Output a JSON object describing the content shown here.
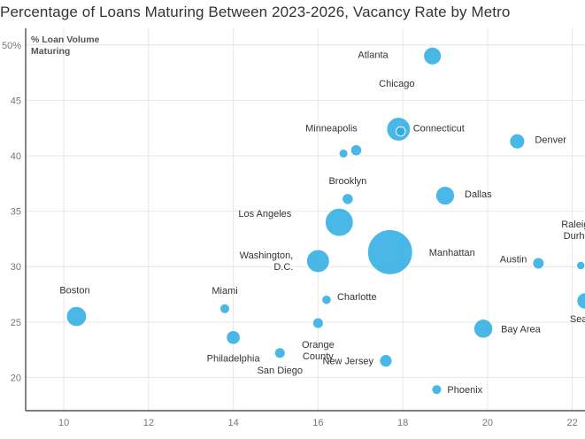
{
  "chart_data": {
    "type": "scatter",
    "title": "Percentage of Loans Maturing Between 2023-2026, Vacancy Rate by Metro",
    "ylabel_lines": [
      "% Loan Volume",
      "Maturing"
    ],
    "xlabel": "",
    "xlim": [
      9.1,
      22.3
    ],
    "ylim": [
      17,
      51.5
    ],
    "x_ticks": [
      10,
      12,
      14,
      16,
      18,
      20,
      22
    ],
    "y_ticks": [
      20,
      25,
      30,
      35,
      40,
      45,
      50
    ],
    "y_tick_labels": [
      "20",
      "25",
      "30",
      "35",
      "40",
      "45",
      "50%"
    ],
    "grid": true,
    "points": [
      {
        "name": "Atlanta",
        "label": [
          "Atlanta"
        ],
        "x": 18.7,
        "y": 49.0,
        "size": 3.6
      },
      {
        "name": "Chicago",
        "label": [
          "Chicago"
        ],
        "x": 17.9,
        "y": 42.4,
        "size": 6.4
      },
      {
        "name": "Connecticut",
        "label": [
          "Connecticut"
        ],
        "x": 17.95,
        "y": 42.2,
        "size": 1.0
      },
      {
        "name": "Minneapolis-a",
        "label": [],
        "x": 16.6,
        "y": 40.2,
        "size": 0.9
      },
      {
        "name": "Minneapolis",
        "label": [
          "Minneapolis"
        ],
        "x": 16.9,
        "y": 40.5,
        "size": 1.4
      },
      {
        "name": "Denver",
        "label": [
          "Denver"
        ],
        "x": 20.7,
        "y": 41.3,
        "size": 2.6
      },
      {
        "name": "Brooklyn",
        "label": [
          "Brooklyn"
        ],
        "x": 16.7,
        "y": 36.1,
        "size": 1.4
      },
      {
        "name": "Dallas",
        "label": [
          "Dallas"
        ],
        "x": 19.0,
        "y": 36.4,
        "size": 4.0
      },
      {
        "name": "Los Angeles",
        "label": [
          "Los Angeles"
        ],
        "x": 16.5,
        "y": 34.0,
        "size": 9.0
      },
      {
        "name": "Manhattan",
        "label": [
          "Manhattan"
        ],
        "x": 17.7,
        "y": 31.3,
        "size": 23.0
      },
      {
        "name": "Washington, D.C.",
        "label": [
          "Washington,",
          "D.C."
        ],
        "x": 16.0,
        "y": 30.5,
        "size": 6.0
      },
      {
        "name": "Austin",
        "label": [
          "Austin"
        ],
        "x": 21.2,
        "y": 30.3,
        "size": 1.5
      },
      {
        "name": "Raleigh - Durham",
        "label": [
          "Raleigh -",
          "Durham"
        ],
        "x": 22.2,
        "y": 30.1,
        "size": 0.8
      },
      {
        "name": "Boston",
        "label": [
          "Boston"
        ],
        "x": 10.3,
        "y": 25.5,
        "size": 4.6
      },
      {
        "name": "Miami",
        "label": [
          "Miami"
        ],
        "x": 13.8,
        "y": 26.2,
        "size": 1.1
      },
      {
        "name": "Charlotte",
        "label": [
          "Charlotte"
        ],
        "x": 16.2,
        "y": 27.0,
        "size": 1.0
      },
      {
        "name": "Seattle",
        "label": [
          "Seattle"
        ],
        "x": 22.3,
        "y": 26.9,
        "size": 3.0
      },
      {
        "name": "Bay Area",
        "label": [
          "Bay Area"
        ],
        "x": 19.9,
        "y": 24.4,
        "size": 4.1
      },
      {
        "name": "Orange County",
        "label": [
          "Orange",
          "County"
        ],
        "x": 16.0,
        "y": 24.9,
        "size": 1.3
      },
      {
        "name": "Philadelphia",
        "label": [
          "Philadelphia"
        ],
        "x": 14.0,
        "y": 23.6,
        "size": 2.2
      },
      {
        "name": "San Diego",
        "label": [
          "San Diego"
        ],
        "x": 15.1,
        "y": 22.2,
        "size": 1.3
      },
      {
        "name": "New Jersey",
        "label": [
          "New Jersey"
        ],
        "x": 17.6,
        "y": 21.5,
        "size": 1.8
      },
      {
        "name": "Phoenix",
        "label": [
          "Phoenix"
        ],
        "x": 18.8,
        "y": 18.9,
        "size": 1.1
      }
    ]
  }
}
